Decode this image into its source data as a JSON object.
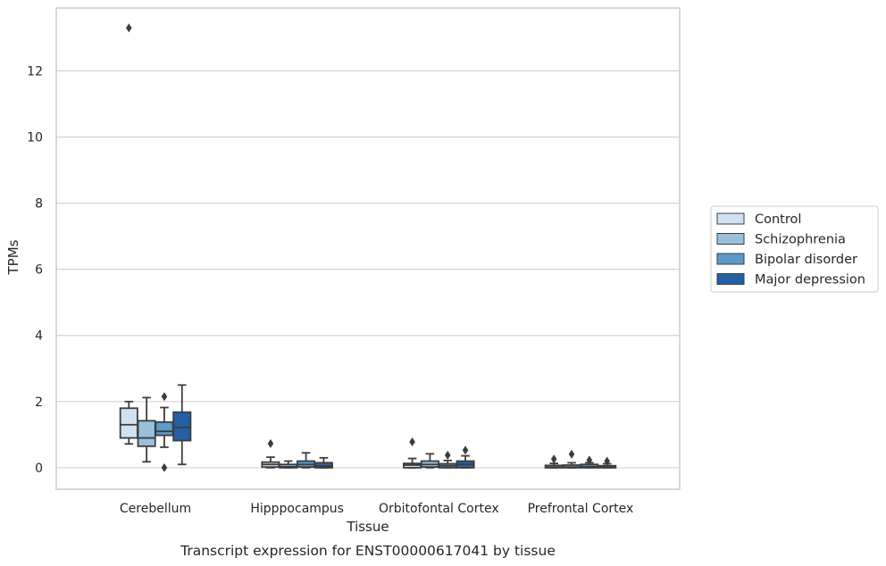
{
  "chart_data": {
    "type": "box",
    "title": "Transcript expression for ENST00000617041 by tissue",
    "xlabel": "Tissue",
    "ylabel": "TPMs",
    "ylim": [
      -0.65,
      13.9
    ],
    "yticks": [
      0,
      2,
      4,
      6,
      8,
      10,
      12
    ],
    "grid": true,
    "legend_position": "right",
    "categories": [
      "Cerebellum",
      "Hipppocampus",
      "Orbitofontal Cortex",
      "Prefrontal Cortex"
    ],
    "series": [
      {
        "name": "Control",
        "color": "#d0e1f2",
        "boxes": [
          {
            "whislo": 0.72,
            "q1": 0.9,
            "med": 1.3,
            "q3": 1.8,
            "whishi": 2.0,
            "fliers": [
              13.3
            ]
          },
          {
            "whislo": 0.0,
            "q1": 0.02,
            "med": 0.1,
            "q3": 0.17,
            "whishi": 0.32,
            "fliers": [
              0.73
            ]
          },
          {
            "whislo": 0.0,
            "q1": 0.0,
            "med": 0.08,
            "q3": 0.13,
            "whishi": 0.28,
            "fliers": [
              0.78
            ]
          },
          {
            "whislo": 0.0,
            "q1": 0.0,
            "med": 0.02,
            "q3": 0.07,
            "whishi": 0.13,
            "fliers": [
              0.26
            ]
          }
        ]
      },
      {
        "name": "Schizophrenia",
        "color": "#9ac0dc",
        "boxes": [
          {
            "whislo": 0.18,
            "q1": 0.65,
            "med": 0.9,
            "q3": 1.42,
            "whishi": 2.12,
            "fliers": []
          },
          {
            "whislo": 0.0,
            "q1": 0.0,
            "med": 0.03,
            "q3": 0.1,
            "whishi": 0.2,
            "fliers": []
          },
          {
            "whislo": 0.0,
            "q1": 0.02,
            "med": 0.1,
            "q3": 0.2,
            "whishi": 0.42,
            "fliers": []
          },
          {
            "whislo": 0.0,
            "q1": 0.0,
            "med": 0.02,
            "q3": 0.08,
            "whishi": 0.15,
            "fliers": [
              0.41
            ]
          }
        ]
      },
      {
        "name": "Bipolar disorder",
        "color": "#5c9ac9",
        "boxes": [
          {
            "whislo": 0.62,
            "q1": 0.98,
            "med": 1.1,
            "q3": 1.38,
            "whishi": 1.82,
            "fliers": [
              2.15,
              0.0
            ]
          },
          {
            "whislo": 0.0,
            "q1": 0.02,
            "med": 0.1,
            "q3": 0.2,
            "whishi": 0.45,
            "fliers": []
          },
          {
            "whislo": 0.0,
            "q1": 0.0,
            "med": 0.06,
            "q3": 0.12,
            "whishi": 0.22,
            "fliers": [
              0.38
            ]
          },
          {
            "whislo": 0.0,
            "q1": 0.0,
            "med": 0.03,
            "q3": 0.1,
            "whishi": 0.15,
            "fliers": [
              0.23
            ]
          }
        ]
      },
      {
        "name": "Major depression",
        "color": "#2460a4",
        "boxes": [
          {
            "whislo": 0.1,
            "q1": 0.82,
            "med": 1.22,
            "q3": 1.68,
            "whishi": 2.5,
            "fliers": []
          },
          {
            "whislo": 0.0,
            "q1": 0.0,
            "med": 0.05,
            "q3": 0.15,
            "whishi": 0.3,
            "fliers": []
          },
          {
            "whislo": 0.0,
            "q1": 0.0,
            "med": 0.1,
            "q3": 0.2,
            "whishi": 0.36,
            "fliers": [
              0.53
            ]
          },
          {
            "whislo": 0.0,
            "q1": 0.0,
            "med": 0.02,
            "q3": 0.06,
            "whishi": 0.12,
            "fliers": [
              0.2
            ]
          }
        ]
      }
    ]
  }
}
